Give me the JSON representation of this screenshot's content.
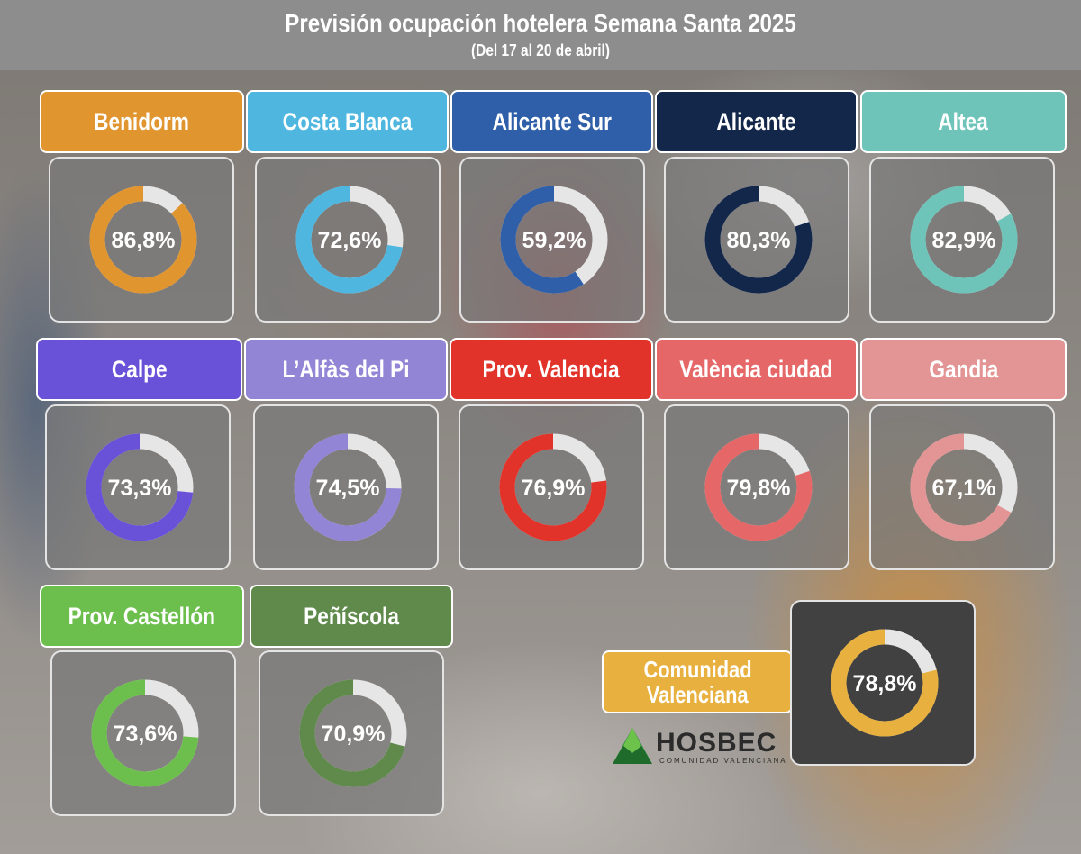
{
  "header": {
    "title": "Previsión ocupación hotelera Semana Santa 2025",
    "subtitle": "(Del 17 al 20 de abril)"
  },
  "chart_data": {
    "type": "pie",
    "title": "Previsión ocupación hotelera Semana Santa 2025",
    "subtitle": "(Del 17 al 20 de abril)",
    "unit": "%",
    "remainder_color": "#e6e6e6",
    "series": [
      {
        "name": "Benidorm",
        "value": 86.8,
        "label": "86,8%",
        "color": "#e0952f"
      },
      {
        "name": "Costa Blanca",
        "value": 72.6,
        "label": "72,6%",
        "color": "#4fb7df"
      },
      {
        "name": "Alicante Sur",
        "value": 59.2,
        "label": "59,2%",
        "color": "#2f5fa8"
      },
      {
        "name": "Alicante",
        "value": 80.3,
        "label": "80,3%",
        "color": "#13274a"
      },
      {
        "name": "Altea",
        "value": 82.9,
        "label": "82,9%",
        "color": "#6fc4b9"
      },
      {
        "name": "Calpe",
        "value": 73.3,
        "label": "73,3%",
        "color": "#6a52d8"
      },
      {
        "name": "L’Alfàs del Pi",
        "value": 74.5,
        "label": "74,5%",
        "color": "#9385d6"
      },
      {
        "name": "Prov. Valencia",
        "value": 76.9,
        "label": "76,9%",
        "color": "#e2332a"
      },
      {
        "name": "València ciudad",
        "value": 79.8,
        "label": "79,8%",
        "color": "#e56767"
      },
      {
        "name": "Gandia",
        "value": 67.1,
        "label": "67,1%",
        "color": "#e39494"
      },
      {
        "name": "Prov. Castellón",
        "value": 73.6,
        "label": "73,6%",
        "color": "#6dbf4d"
      },
      {
        "name": "Peñíscola",
        "value": 70.9,
        "label": "70,9%",
        "color": "#5f8a4b"
      }
    ],
    "total": {
      "name": "Comunidad Valenciana",
      "name_lines": [
        "Comunidad",
        "Valenciana"
      ],
      "value": 78.8,
      "label": "78,8%",
      "color": "#e8b03e"
    }
  },
  "logo": {
    "text": "HOSBEC",
    "subtext": "COMUNIDAD VALENCIANA",
    "color": "#2e8b3a"
  }
}
